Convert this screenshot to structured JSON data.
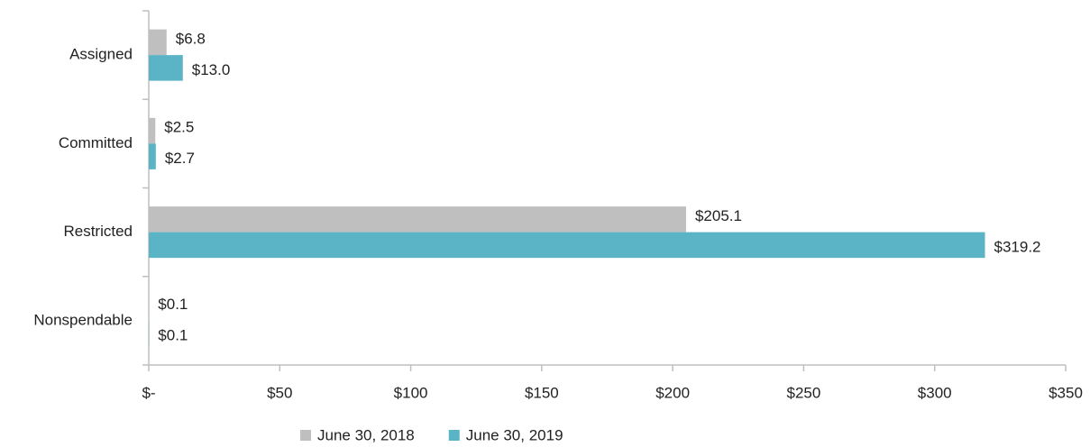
{
  "chart_data": {
    "type": "hbar",
    "categories": [
      "Assigned",
      "Committed",
      "Restricted",
      "Nonspendable"
    ],
    "series": [
      {
        "name": "June 30, 2018",
        "color": "#bfbfbf",
        "values": [
          6.8,
          2.5,
          205.1,
          0.1
        ],
        "value_labels": [
          "$6.8",
          "$2.5",
          "$205.1",
          "$0.1"
        ]
      },
      {
        "name": "June 30, 2019",
        "color": "#5ab4c5",
        "values": [
          13.0,
          2.7,
          319.2,
          0.1
        ],
        "value_labels": [
          "$13.0",
          "$2.7",
          "$319.2",
          "$0.1"
        ]
      }
    ],
    "xlim": [
      0,
      350
    ],
    "xticks": [
      {
        "value": 0,
        "label": "$-"
      },
      {
        "value": 50,
        "label": "$50"
      },
      {
        "value": 100,
        "label": "$100"
      },
      {
        "value": 150,
        "label": "$150"
      },
      {
        "value": 200,
        "label": "$200"
      },
      {
        "value": 250,
        "label": "$250"
      },
      {
        "value": 300,
        "label": "$300"
      },
      {
        "value": 350,
        "label": "$350"
      }
    ],
    "legend": "bottom"
  }
}
